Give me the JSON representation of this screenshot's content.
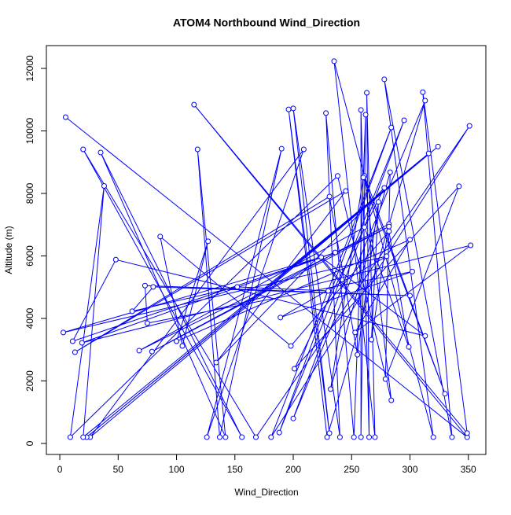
{
  "chart_data": {
    "type": "line",
    "title": "ATOM4 Northbound Wind_Direction",
    "x_label": "Wind_Direction",
    "y_label": "Altitude (m)",
    "color": "#0000ff",
    "markers": true,
    "x": [
      5,
      349,
      115,
      349,
      311,
      336,
      278,
      320,
      235,
      270,
      263,
      265,
      258,
      258,
      262,
      252,
      228,
      240,
      200,
      231,
      196,
      229,
      313,
      200,
      295,
      188,
      284,
      181,
      351,
      168,
      20,
      156,
      35,
      142,
      118,
      137,
      190,
      126,
      209,
      26,
      324,
      23,
      316,
      20,
      38,
      9,
      238,
      284,
      261,
      330,
      260,
      232,
      283,
      279,
      342,
      201,
      278,
      134,
      245,
      13,
      231,
      255,
      273,
      267,
      282,
      79,
      282,
      68,
      261,
      299,
      282,
      198,
      86,
      105,
      127,
      100,
      300,
      253,
      352,
      19,
      236,
      11,
      48,
      313,
      224,
      3,
      280,
      189,
      302,
      75,
      73,
      300,
      80,
      62,
      152,
      230
    ],
    "y": [
      10440,
      200,
      10840,
      330,
      11240,
      200,
      11650,
      200,
      12230,
      200,
      11220,
      200,
      10670,
      200,
      10520,
      200,
      10570,
      200,
      10720,
      330,
      10690,
      200,
      10970,
      800,
      10340,
      350,
      10110,
      200,
      10160,
      200,
      9410,
      200,
      9310,
      200,
      9410,
      200,
      9430,
      200,
      9410,
      200,
      9500,
      200,
      9280,
      200,
      8240,
      200,
      8560,
      1380,
      8560,
      1590,
      8510,
      1740,
      8680,
      2060,
      8230,
      2390,
      8180,
      2590,
      8080,
      2920,
      7900,
      2840,
      7730,
      3320,
      7020,
      2940,
      6940,
      2970,
      6920,
      3090,
      6790,
      3120,
      6620,
      3120,
      6470,
      3270,
      6520,
      3550,
      6340,
      3220,
      6110,
      3270,
      5880,
      3440,
      5960,
      3550,
      5990,
      4030,
      5500,
      3850,
      5050,
      4730,
      5010,
      4230,
      5010,
      4880
    ],
    "xlim": [
      -11.5,
      365
    ],
    "ylim": [
      -352,
      12730
    ],
    "xticks": [
      0,
      50,
      100,
      150,
      200,
      250,
      300,
      350
    ],
    "yticks": [
      0,
      2000,
      4000,
      6000,
      8000,
      10000,
      12000
    ]
  }
}
